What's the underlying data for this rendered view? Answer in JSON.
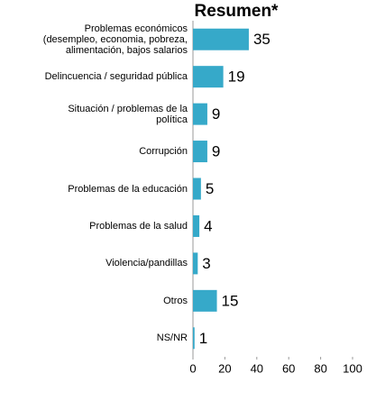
{
  "chart_data": {
    "type": "barh",
    "title": "Resumen*",
    "categories": [
      "Problemas económicos\n(desempleo, economia, pobreza,\nalimentación, bajos salarios",
      "Delincuencia / seguridad pública",
      "Situación / problemas de la\npolítica",
      "Corrupción",
      "Problemas de la educación",
      "Problemas de la salud",
      "Violencia/pandillas",
      "Otros",
      "NS/NR"
    ],
    "values": [
      35,
      19,
      9,
      9,
      5,
      4,
      3,
      15,
      1
    ],
    "color": "#36a9c9",
    "xlim": [
      0,
      100
    ],
    "xticks": [
      0,
      20,
      40,
      60,
      80,
      100
    ]
  }
}
